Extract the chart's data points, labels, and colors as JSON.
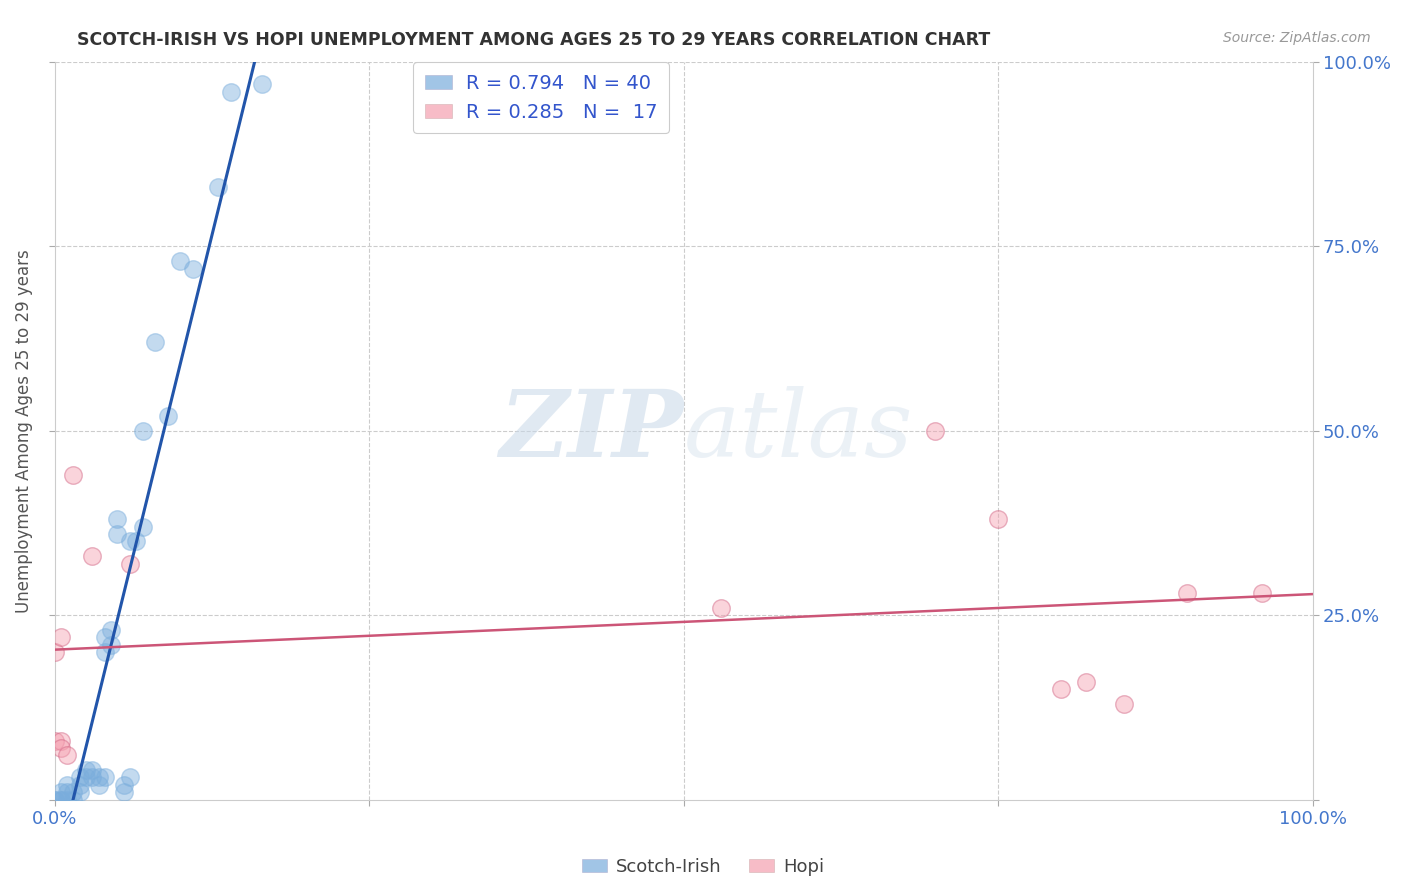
{
  "title": "SCOTCH-IRISH VS HOPI UNEMPLOYMENT AMONG AGES 25 TO 29 YEARS CORRELATION CHART",
  "source": "Source: ZipAtlas.com",
  "ylabel": "Unemployment Among Ages 25 to 29 years",
  "xlim": [
    0,
    1.0
  ],
  "ylim": [
    0,
    1.0
  ],
  "xticks": [
    0.0,
    0.25,
    0.5,
    0.75,
    1.0
  ],
  "yticks": [
    0.0,
    0.25,
    0.5,
    0.75,
    1.0
  ],
  "xticklabels": [
    "0.0%",
    "",
    "",
    "",
    "100.0%"
  ],
  "right_yticklabels": [
    "",
    "25.0%",
    "50.0%",
    "75.0%",
    "100.0%"
  ],
  "legend_labels": [
    "Scotch-Irish",
    "Hopi"
  ],
  "scotch_irish_color": "#7aaddc",
  "scotch_irish_edge_color": "#4a7ab0",
  "hopi_color": "#f5a0b0",
  "hopi_edge_color": "#d06080",
  "line_blue": "#2255aa",
  "line_pink": "#cc5577",
  "scotch_irish_R": 0.794,
  "scotch_irish_N": 40,
  "hopi_R": 0.285,
  "hopi_N": 17,
  "scotch_irish_points": [
    [
      0.0,
      0.0
    ],
    [
      0.0,
      0.0
    ],
    [
      0.005,
      0.0
    ],
    [
      0.005,
      0.0
    ],
    [
      0.005,
      0.01
    ],
    [
      0.01,
      0.0
    ],
    [
      0.01,
      0.01
    ],
    [
      0.01,
      0.02
    ],
    [
      0.015,
      0.0
    ],
    [
      0.015,
      0.01
    ],
    [
      0.02,
      0.01
    ],
    [
      0.02,
      0.02
    ],
    [
      0.02,
      0.03
    ],
    [
      0.025,
      0.03
    ],
    [
      0.025,
      0.04
    ],
    [
      0.03,
      0.03
    ],
    [
      0.03,
      0.04
    ],
    [
      0.035,
      0.02
    ],
    [
      0.035,
      0.03
    ],
    [
      0.04,
      0.03
    ],
    [
      0.04,
      0.2
    ],
    [
      0.04,
      0.22
    ],
    [
      0.045,
      0.21
    ],
    [
      0.045,
      0.23
    ],
    [
      0.05,
      0.36
    ],
    [
      0.05,
      0.38
    ],
    [
      0.055,
      0.01
    ],
    [
      0.055,
      0.02
    ],
    [
      0.06,
      0.03
    ],
    [
      0.06,
      0.35
    ],
    [
      0.065,
      0.35
    ],
    [
      0.07,
      0.37
    ],
    [
      0.07,
      0.5
    ],
    [
      0.08,
      0.62
    ],
    [
      0.09,
      0.52
    ],
    [
      0.1,
      0.73
    ],
    [
      0.11,
      0.72
    ],
    [
      0.13,
      0.83
    ],
    [
      0.14,
      0.96
    ],
    [
      0.165,
      0.97
    ]
  ],
  "hopi_points": [
    [
      0.0,
      0.2
    ],
    [
      0.0,
      0.08
    ],
    [
      0.005,
      0.22
    ],
    [
      0.005,
      0.08
    ],
    [
      0.005,
      0.07
    ],
    [
      0.01,
      0.06
    ],
    [
      0.015,
      0.44
    ],
    [
      0.03,
      0.33
    ],
    [
      0.06,
      0.32
    ],
    [
      0.53,
      0.26
    ],
    [
      0.7,
      0.5
    ],
    [
      0.75,
      0.38
    ],
    [
      0.8,
      0.15
    ],
    [
      0.82,
      0.16
    ],
    [
      0.85,
      0.13
    ],
    [
      0.9,
      0.28
    ],
    [
      0.96,
      0.28
    ]
  ],
  "watermark_zip": "ZIP",
  "watermark_atlas": "atlas",
  "background_color": "#ffffff",
  "grid_color": "#cccccc"
}
